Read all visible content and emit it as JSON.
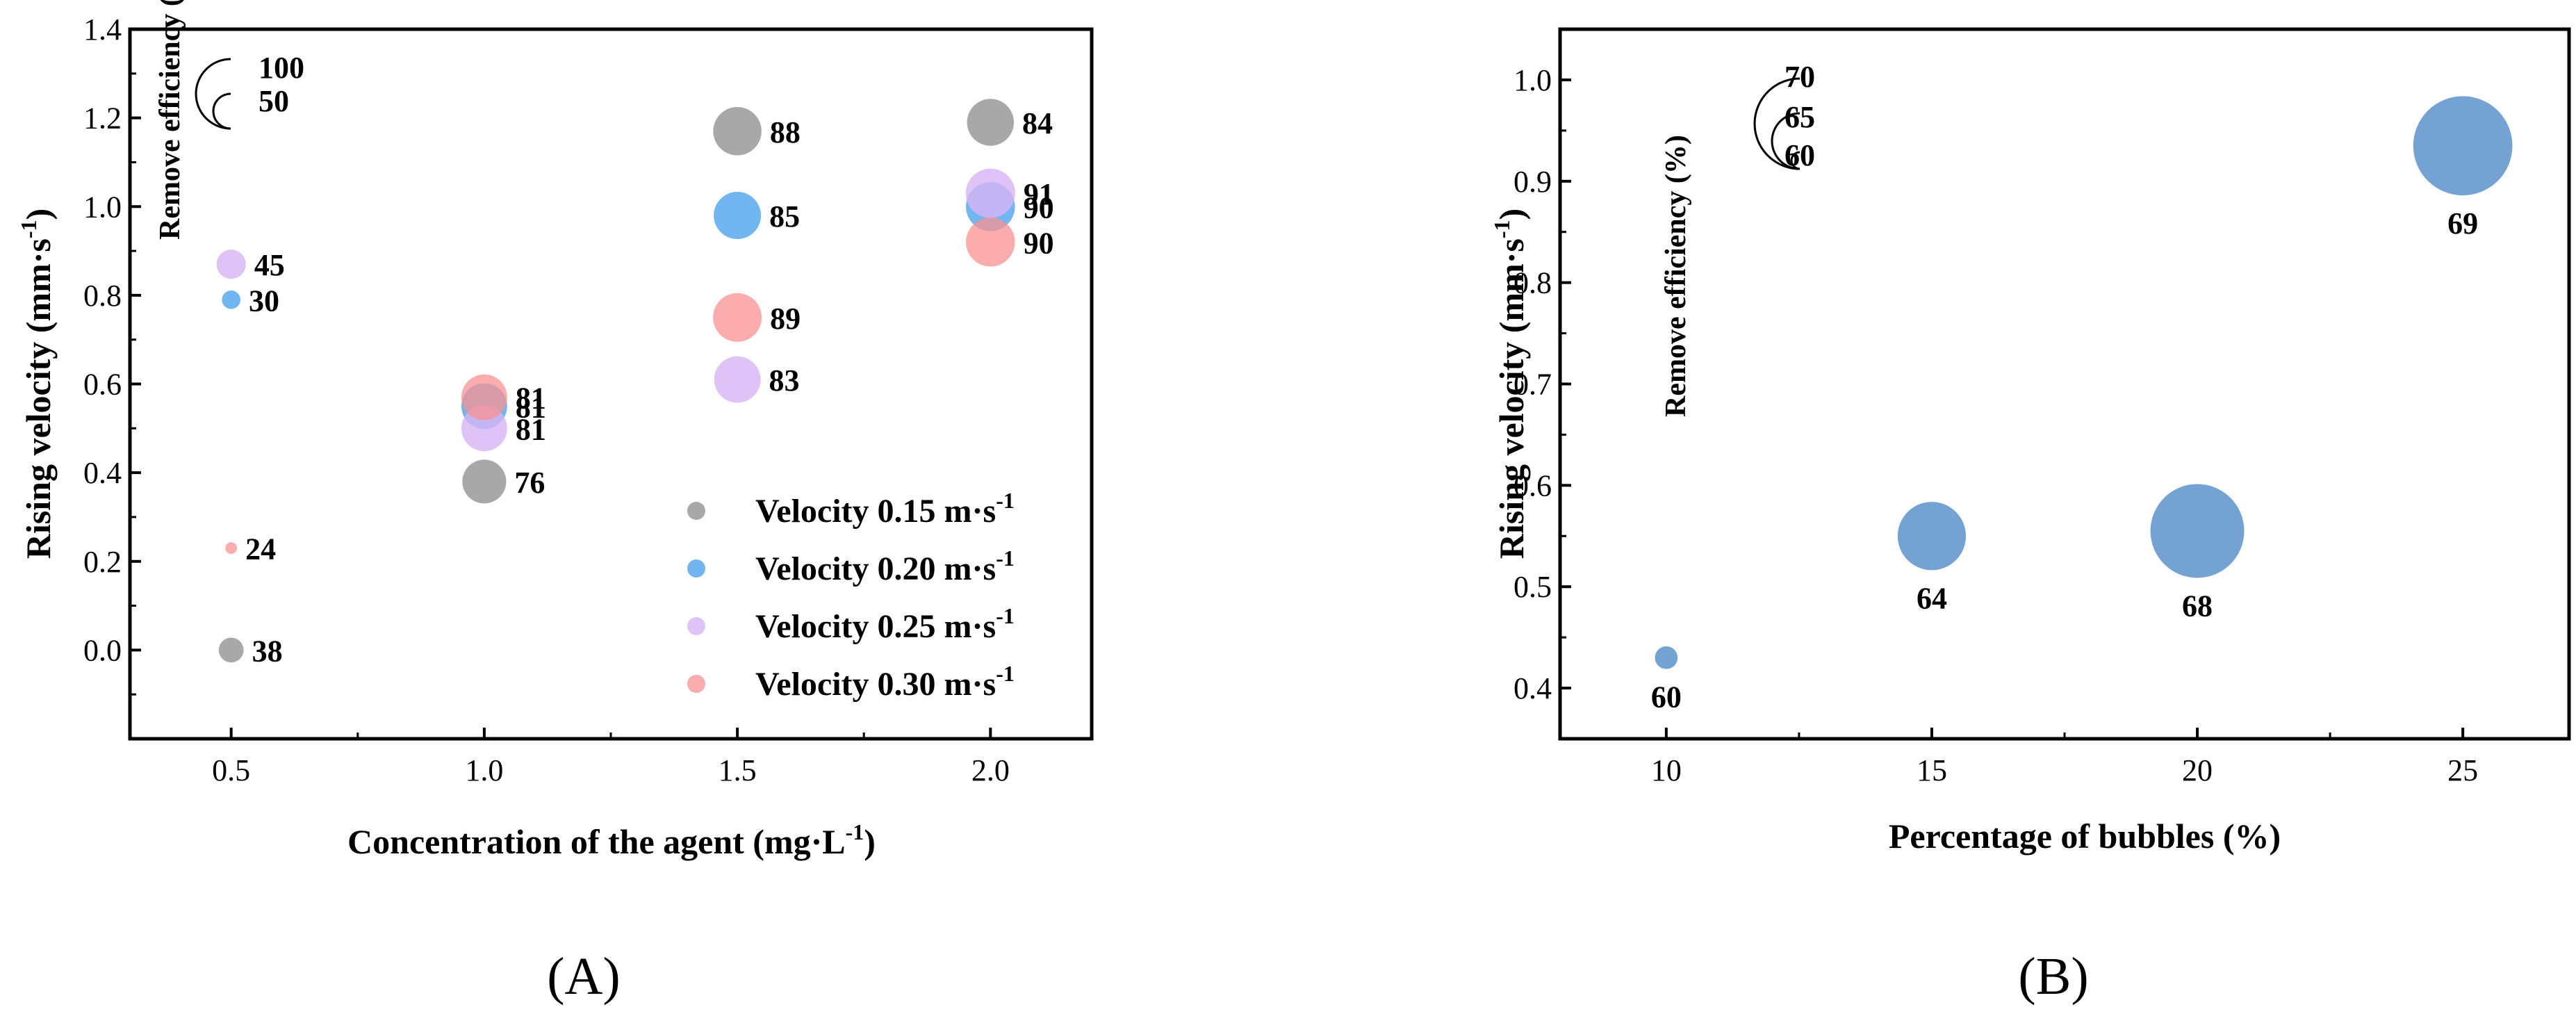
{
  "chart_data": [
    {
      "panel_label": "(A)",
      "type": "scatter",
      "subtype": "bubble",
      "xlabel": "Concentration of the agent (mg·L",
      "xlabel_sup": "-1",
      "xlabel_tail": ")",
      "ylabel": "Rising velocity (mm·s",
      "ylabel_sup": "-1",
      "ylabel_tail": ")",
      "xlim": [
        0.3,
        2.2
      ],
      "ylim": [
        -0.2,
        1.4
      ],
      "xticks": [
        "0.5",
        "1.0",
        "1.5",
        "2.0"
      ],
      "xtick_values": [
        0.5,
        1.0,
        1.5,
        2.0
      ],
      "yticks": [
        "0.0",
        "0.2",
        "0.4",
        "0.6",
        "0.8",
        "1.0",
        "1.2",
        "1.4"
      ],
      "ytick_values": [
        0.0,
        0.2,
        0.4,
        0.6,
        0.8,
        1.0,
        1.2,
        1.4
      ],
      "size_legend": {
        "title": "Remove efficiency (%)",
        "values": [
          "100",
          "50"
        ],
        "numeric": [
          100,
          50
        ]
      },
      "size_scale": {
        "ref_value": 100,
        "value_floor": 20
      },
      "series": [
        {
          "name": "Velocity 0.15 m·s",
          "name_sup": "-1",
          "color": "#a3a3a3",
          "opacity": 0.95,
          "points": [
            {
              "x": 0.5,
              "y": 0.0,
              "size": 38,
              "label": "38"
            },
            {
              "x": 1.0,
              "y": 0.38,
              "size": 76,
              "label": "76"
            },
            {
              "x": 1.5,
              "y": 1.17,
              "size": 88,
              "label": "88"
            },
            {
              "x": 2.0,
              "y": 1.19,
              "size": 84,
              "label": "84"
            }
          ]
        },
        {
          "name": "Velocity 0.20 m·s",
          "name_sup": "-1",
          "color": "#62aef0",
          "opacity": 0.9,
          "points": [
            {
              "x": 0.5,
              "y": 0.79,
              "size": 30,
              "label": "30"
            },
            {
              "x": 1.0,
              "y": 0.55,
              "size": 81,
              "label": "81"
            },
            {
              "x": 1.5,
              "y": 0.98,
              "size": 85,
              "label": "85"
            },
            {
              "x": 2.0,
              "y": 1.0,
              "size": 90,
              "label": "90"
            }
          ]
        },
        {
          "name": "Velocity 0.25 m·s",
          "name_sup": "-1",
          "color": "#d8b4f4",
          "opacity": 0.8,
          "points": [
            {
              "x": 0.5,
              "y": 0.87,
              "size": 45,
              "label": "45"
            },
            {
              "x": 1.0,
              "y": 0.5,
              "size": 81,
              "label": "81"
            },
            {
              "x": 1.5,
              "y": 0.61,
              "size": 83,
              "label": "83"
            },
            {
              "x": 2.0,
              "y": 1.03,
              "size": 91,
              "label": "91"
            }
          ]
        },
        {
          "name": "Velocity 0.30 m·s",
          "name_sup": "-1",
          "color": "#f99090",
          "opacity": 0.75,
          "points": [
            {
              "x": 0.5,
              "y": 0.23,
              "size": 24,
              "label": "24"
            },
            {
              "x": 1.0,
              "y": 0.57,
              "size": 81,
              "label": "81"
            },
            {
              "x": 1.5,
              "y": 0.75,
              "size": 89,
              "label": "89"
            },
            {
              "x": 2.0,
              "y": 0.92,
              "size": 90,
              "label": "90"
            }
          ]
        }
      ],
      "legend_position": "bottom-right"
    },
    {
      "panel_label": "(B)",
      "type": "scatter",
      "subtype": "bubble",
      "xlabel": "Percentage of bubbles (%)",
      "ylabel": "Rising velocity (mm·s",
      "ylabel_sup": "-1",
      "ylabel_tail": ")",
      "xlim": [
        8,
        27
      ],
      "ylim": [
        0.35,
        1.05
      ],
      "xticks": [
        "10",
        "15",
        "20",
        "25"
      ],
      "xtick_values": [
        10,
        15,
        20,
        25
      ],
      "yticks": [
        "0.4",
        "0.5",
        "0.6",
        "0.7",
        "0.8",
        "0.9",
        "1.0"
      ],
      "ytick_values": [
        0.4,
        0.5,
        0.6,
        0.7,
        0.8,
        0.9,
        1.0
      ],
      "size_legend": {
        "title": "Remove efficiency (%)",
        "values": [
          "70",
          "65",
          "60"
        ],
        "numeric": [
          70,
          65,
          60
        ]
      },
      "size_scale": {
        "ref_value": 70,
        "value_floor": 59.5
      },
      "series": [
        {
          "name": "",
          "color": "#6c9dd1",
          "opacity": 0.95,
          "points": [
            {
              "x": 10,
              "y": 0.43,
              "size": 60,
              "label": "60"
            },
            {
              "x": 15,
              "y": 0.55,
              "size": 64,
              "label": "64"
            },
            {
              "x": 20,
              "y": 0.555,
              "size": 68,
              "label": "68"
            },
            {
              "x": 25,
              "y": 0.935,
              "size": 69,
              "label": "69"
            }
          ]
        }
      ]
    }
  ]
}
